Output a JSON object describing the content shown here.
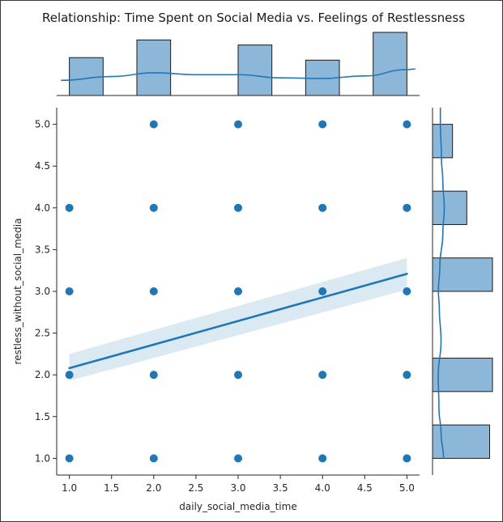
{
  "chart_data": {
    "type": "scatter",
    "title": "Relationship: Time Spent on Social Media vs. Feelings of Restlessness",
    "xlabel": "daily_social_media_time",
    "ylabel": "restless_without_social_media",
    "xlim": [
      0.85,
      5.15
    ],
    "ylim": [
      0.8,
      5.2
    ],
    "xticks": [
      "1.0",
      "1.5",
      "2.0",
      "2.5",
      "3.0",
      "3.5",
      "4.0",
      "4.5",
      "5.0"
    ],
    "yticks": [
      "1.0",
      "1.5",
      "2.0",
      "2.5",
      "3.0",
      "3.5",
      "4.0",
      "4.5",
      "5.0"
    ],
    "point_color": "#1f77b4",
    "bar_fill": "#8db7d9",
    "points": [
      [
        1,
        1
      ],
      [
        1,
        2
      ],
      [
        1,
        3
      ],
      [
        1,
        4
      ],
      [
        2,
        1
      ],
      [
        2,
        2
      ],
      [
        2,
        3
      ],
      [
        2,
        4
      ],
      [
        2,
        5
      ],
      [
        3,
        1
      ],
      [
        3,
        2
      ],
      [
        3,
        3
      ],
      [
        3,
        4
      ],
      [
        3,
        5
      ],
      [
        4,
        1
      ],
      [
        4,
        2
      ],
      [
        4,
        3
      ],
      [
        4,
        4
      ],
      [
        4,
        5
      ],
      [
        5,
        1
      ],
      [
        5,
        2
      ],
      [
        5,
        3
      ],
      [
        5,
        4
      ],
      [
        5,
        5
      ]
    ],
    "regression": {
      "x": [
        1,
        5
      ],
      "y": [
        2.08,
        3.21
      ],
      "ci_lower": [
        1.93,
        3.02
      ],
      "ci_upper": [
        2.25,
        3.4
      ]
    },
    "marginal_x": {
      "bins": [
        1.0,
        1.4,
        1.8,
        2.2,
        2.6,
        3.0,
        3.4,
        3.8,
        4.2,
        4.6,
        5.0
      ],
      "counts": [
        15,
        0,
        22,
        0,
        0,
        20,
        0,
        14,
        0,
        25
      ]
    },
    "marginal_y": {
      "bins": [
        1.0,
        1.4,
        1.8,
        2.2,
        2.6,
        3.0,
        3.4,
        3.8,
        4.2,
        4.6,
        5.0
      ],
      "counts": [
        20,
        0,
        21,
        0,
        0,
        21,
        0,
        12,
        0,
        7
      ]
    },
    "marginal_x_kde": [
      [
        0.9,
        0.24
      ],
      [
        1.5,
        0.3
      ],
      [
        2.0,
        0.36
      ],
      [
        2.5,
        0.33
      ],
      [
        3.0,
        0.33
      ],
      [
        3.5,
        0.28
      ],
      [
        4.0,
        0.27
      ],
      [
        4.5,
        0.31
      ],
      [
        5.0,
        0.41
      ],
      [
        5.1,
        0.42
      ]
    ],
    "marginal_y_kde": [
      [
        1.0,
        0.62
      ],
      [
        1.3,
        0.48
      ],
      [
        1.6,
        0.36
      ],
      [
        2.0,
        0.32
      ],
      [
        2.4,
        0.48
      ],
      [
        2.8,
        0.38
      ],
      [
        3.0,
        0.33
      ],
      [
        3.3,
        0.41
      ],
      [
        3.7,
        0.58
      ],
      [
        4.0,
        0.66
      ],
      [
        4.3,
        0.58
      ],
      [
        4.6,
        0.5
      ],
      [
        5.0,
        0.44
      ],
      [
        5.2,
        0.44
      ]
    ]
  }
}
